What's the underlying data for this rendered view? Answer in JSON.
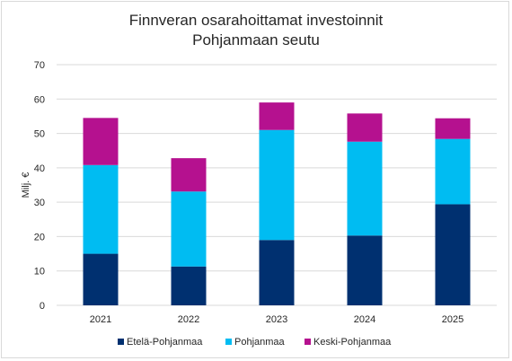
{
  "chart_data": {
    "type": "bar",
    "stacked": true,
    "title": [
      "Finnveran osarahoittamat investoinnit",
      "Pohjanmaan seutu"
    ],
    "ylabel": "Milj. €",
    "xlabel": "",
    "categories": [
      "2021",
      "2022",
      "2023",
      "2024",
      "2025"
    ],
    "ylim": [
      0,
      70
    ],
    "yticks": [
      0,
      10,
      20,
      30,
      40,
      50,
      60,
      70
    ],
    "grid": true,
    "legend_position": "bottom",
    "series": [
      {
        "name": "Etelä-Pohjanmaa",
        "color": "#003070",
        "values": [
          15.0,
          11.3,
          19.0,
          20.3,
          29.4
        ]
      },
      {
        "name": "Pohjanmaa",
        "color": "#00BCF2",
        "values": [
          25.8,
          21.8,
          32.0,
          27.3,
          19.0
        ]
      },
      {
        "name": "Keski-Pohjanmaa",
        "color": "#B5118F",
        "values": [
          13.7,
          9.7,
          8.0,
          8.2,
          6.0
        ]
      }
    ]
  }
}
